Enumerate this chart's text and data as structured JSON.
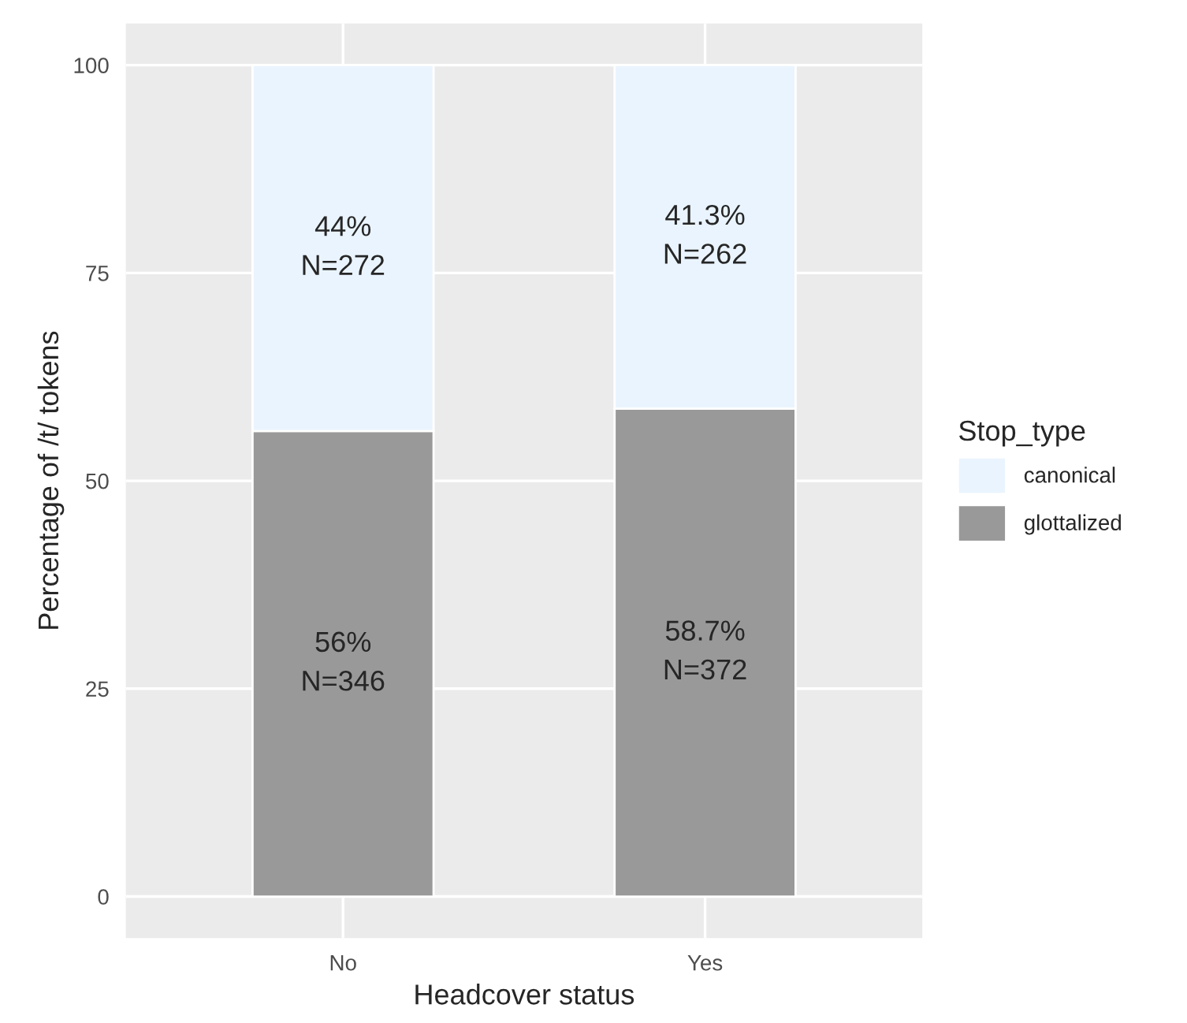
{
  "chart_data": {
    "type": "bar",
    "stacked": true,
    "xlabel": "Headcover status",
    "ylabel": "Percentage of /t/ tokens",
    "legend_title": "Stop_type",
    "legend": "right",
    "grid": true,
    "categories": [
      "No",
      "Yes"
    ],
    "series": [
      {
        "name": "glottalized",
        "color": "#999999",
        "values": [
          56,
          58.7
        ],
        "value_labels": [
          "56%\nN=346",
          "58.7%\nN=372"
        ]
      },
      {
        "name": "canonical",
        "color": "#eaf4fe",
        "values": [
          44,
          41.3
        ],
        "value_labels": [
          "44%\nN=272",
          "41.3%\nN=262"
        ]
      }
    ],
    "ylim": [
      -5,
      105
    ],
    "yticks": [
      0,
      25,
      50,
      75,
      100
    ]
  }
}
